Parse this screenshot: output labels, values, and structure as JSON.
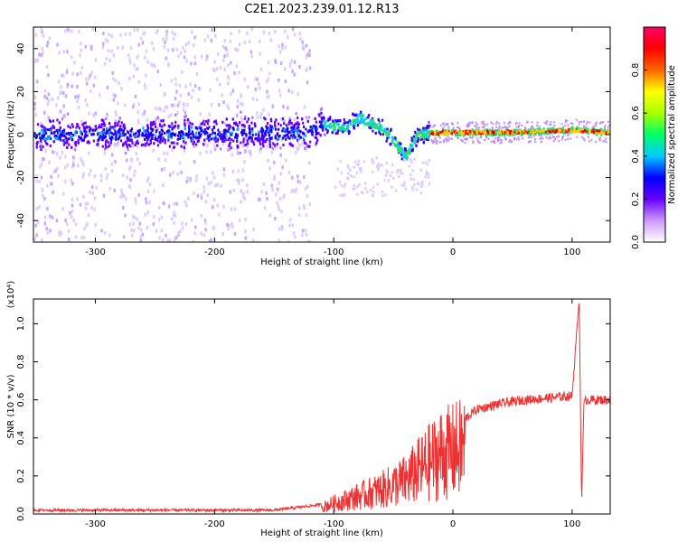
{
  "title": "C2E1.2023.239.01.12.R13",
  "colors": {
    "snr_line": "#ee3030"
  },
  "chart_data": [
    {
      "type": "heatmap",
      "xlabel": "Height of straight line (km)",
      "ylabel": "Frequency (Hz)",
      "xlim": [
        -352,
        132
      ],
      "ylim": [
        -50,
        50
      ],
      "xticks": [
        "-300",
        "-200",
        "-100",
        "0",
        "100"
      ],
      "yticks": [
        "-40",
        "-20",
        "0",
        "20",
        "40"
      ],
      "colorbar": {
        "label": "Normalized spectral amplitude",
        "range": [
          0,
          1
        ],
        "ticks": [
          "0.0",
          "0.2",
          "0.4",
          "0.6",
          "0.8"
        ],
        "colormap": [
          "#ffffff",
          "#cc99ff",
          "#6600ff",
          "#0000ff",
          "#00ccff",
          "#00ff66",
          "#aaff00",
          "#ffff00",
          "#ff6600",
          "#ff0000",
          "#ff0066"
        ]
      },
      "ridge": [
        [
          -350,
          0
        ],
        [
          -120,
          1
        ],
        [
          -110,
          5
        ],
        [
          -90,
          3
        ],
        [
          -80,
          8
        ],
        [
          -60,
          3
        ],
        [
          -40,
          -10
        ],
        [
          -30,
          0
        ],
        [
          -10,
          1
        ],
        [
          0,
          1
        ],
        [
          50,
          1
        ],
        [
          100,
          2
        ],
        [
          132,
          1
        ]
      ]
    },
    {
      "type": "line",
      "xlabel": "Height of straight line (km)",
      "ylabel": "SNR (10 * v/v)",
      "ymultiplier": "(x10⁴)",
      "xlim": [
        -352,
        132
      ],
      "ylim": [
        0,
        1.13
      ],
      "xticks": [
        "-300",
        "-200",
        "-100",
        "0",
        "100"
      ],
      "yticks": [
        "0.0",
        "0.2",
        "0.4",
        "0.6",
        "0.8",
        "1.0"
      ],
      "series": [
        {
          "points": [
            [
              -352,
              0.02
            ],
            [
              -150,
              0.02
            ],
            [
              -110,
              0.05
            ],
            [
              -100,
              0.08
            ],
            [
              -80,
              0.13
            ],
            [
              -60,
              0.18
            ],
            [
              -40,
              0.25
            ],
            [
              -25,
              0.35
            ],
            [
              -10,
              0.45
            ],
            [
              0,
              0.47
            ],
            [
              10,
              0.5
            ],
            [
              20,
              0.55
            ],
            [
              40,
              0.58
            ],
            [
              60,
              0.6
            ],
            [
              80,
              0.61
            ],
            [
              100,
              0.62
            ],
            [
              106,
              1.13
            ],
            [
              108,
              0.05
            ],
            [
              110,
              0.6
            ],
            [
              132,
              0.6
            ]
          ]
        }
      ]
    }
  ]
}
